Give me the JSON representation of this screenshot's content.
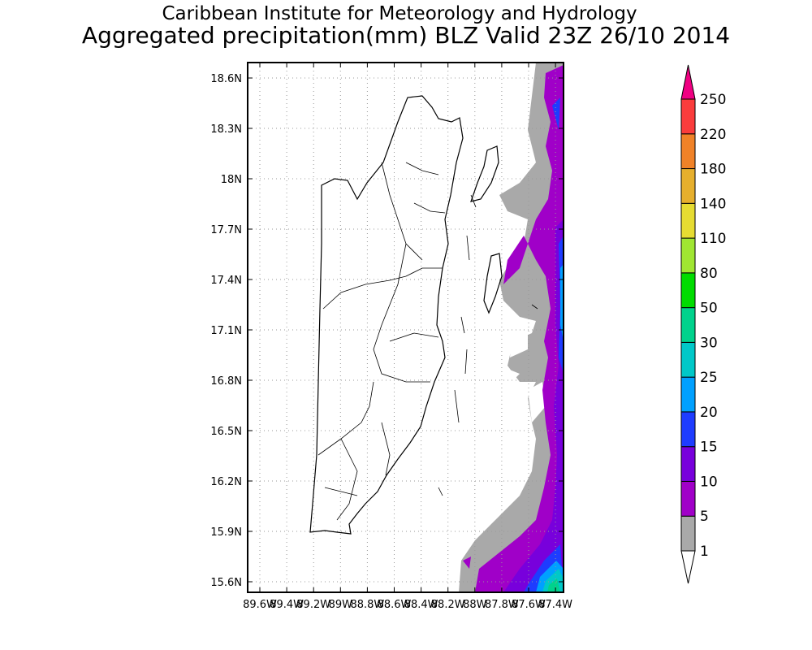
{
  "title_line1": "Caribbean Institute for Meteorology and Hydrology",
  "title_line2": "Aggregated precipitation(mm) BLZ Valid 23Z 26/10 2014",
  "lat_labels": [
    "18.6N",
    "18.3N",
    "18N",
    "17.7N",
    "17.4N",
    "17.1N",
    "16.8N",
    "16.5N",
    "16.2N",
    "15.9N",
    "15.6N"
  ],
  "lon_labels": [
    "89.6W",
    "89.4W",
    "89.2W",
    "89W",
    "88.8W",
    "88.6W",
    "88.4W",
    "88.2W",
    "88W",
    "87.8W",
    "87.6W",
    "87.4W"
  ],
  "colorbar": {
    "levels": [
      "1",
      "5",
      "10",
      "15",
      "20",
      "25",
      "30",
      "50",
      "80",
      "110",
      "140",
      "180",
      "220",
      "250"
    ],
    "colors": [
      "#a9a9a9",
      "#a000c8",
      "#7800dc",
      "#1e3cff",
      "#00a0ff",
      "#00c8c8",
      "#00d28c",
      "#00dc00",
      "#a0e632",
      "#e6dc32",
      "#e6af2d",
      "#f08228",
      "#fa3c3c",
      "#f00082"
    ],
    "under_color": "#ffffff"
  }
}
